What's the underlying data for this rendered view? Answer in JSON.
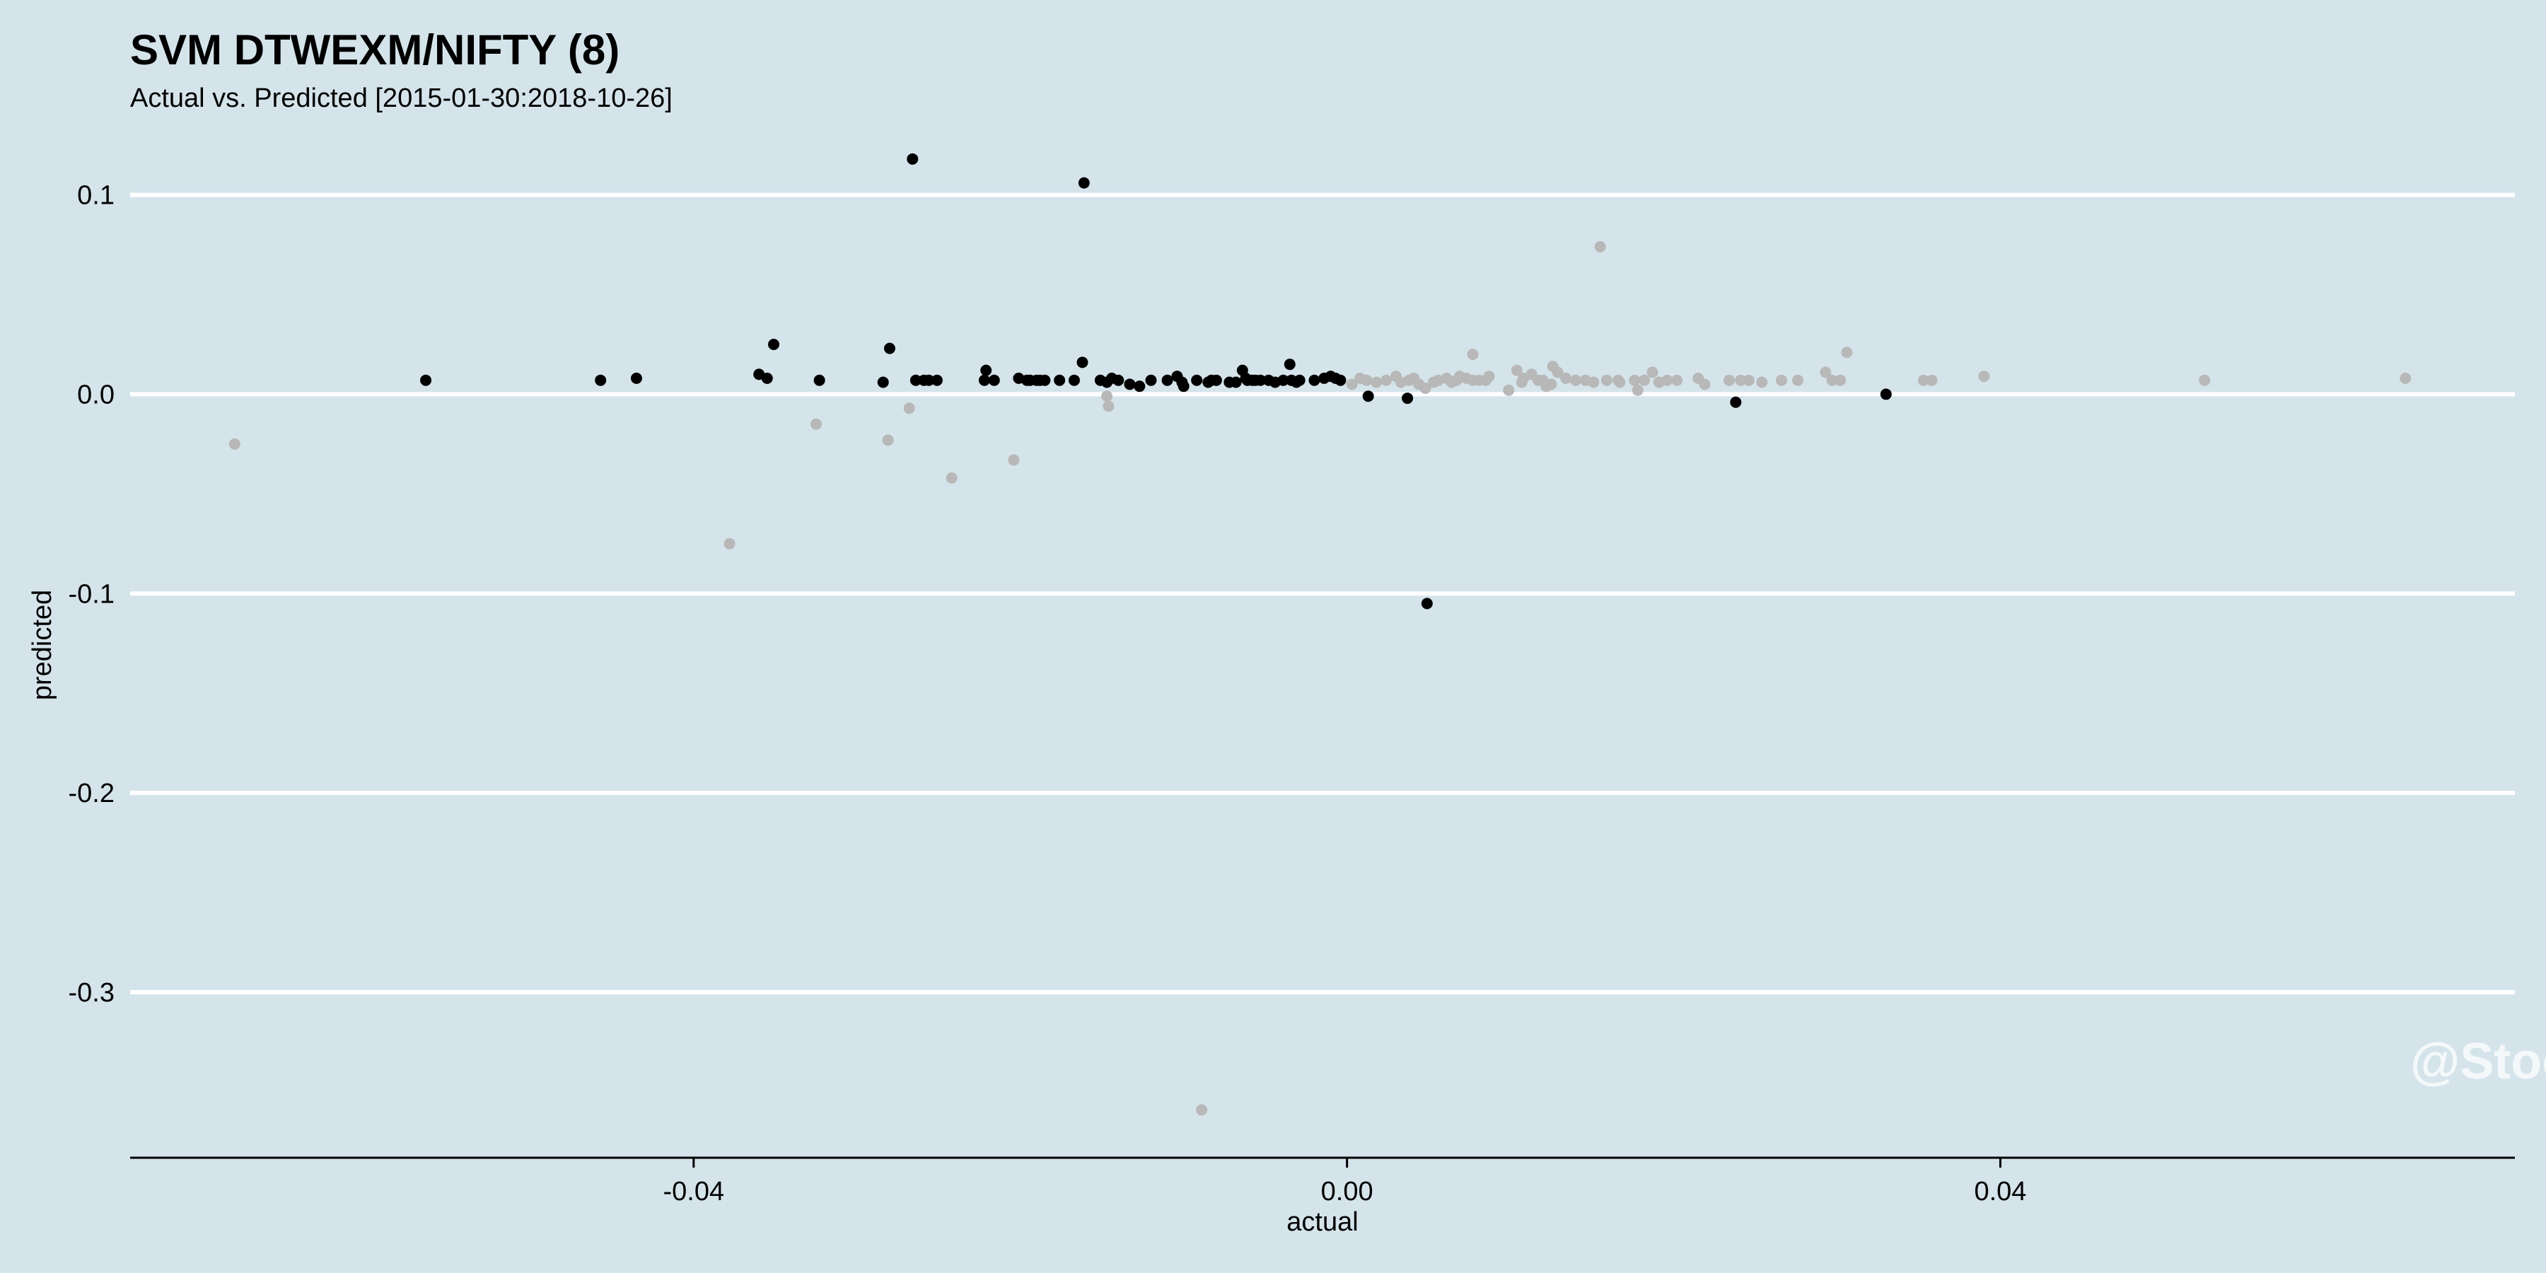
{
  "chart_data": {
    "type": "scatter",
    "title": "SVM DTWEXM/NIFTY (8)",
    "subtitle": "Actual vs. Predicted [2015-01-30:2018-10-26]",
    "xlabel": "actual",
    "ylabel": "predicted",
    "xlim": [
      -0.0745,
      0.0715
    ],
    "ylim": [
      -0.383,
      0.141
    ],
    "xticks": [
      -0.04,
      0.0,
      0.04
    ],
    "xtick_labels": [
      "-0.04",
      "0.00",
      "0.04"
    ],
    "yticks": [
      0.1,
      0.0,
      -0.1,
      -0.2,
      -0.3
    ],
    "ytick_labels": [
      "0.1",
      "0.0",
      "-0.1",
      "-0.2",
      "-0.3"
    ],
    "grid": "horizontal major",
    "watermark": "@StockViz",
    "colors": {
      "background": "#d5e4eb",
      "gridline": "#ffffff",
      "series_dark": "#000000",
      "series_light": "#b8b8b8"
    },
    "series": [
      {
        "color": "#000000",
        "x": [
          -0.0564,
          -0.0457,
          -0.0435,
          -0.036,
          -0.0355,
          -0.0351,
          -0.0323,
          -0.0284,
          -0.028,
          -0.0266,
          -0.0264,
          -0.0259,
          -0.0256,
          -0.0251,
          -0.0222,
          -0.0221,
          -0.0216,
          -0.0201,
          -0.0196,
          -0.0194,
          -0.019,
          -0.0188,
          -0.0185,
          -0.0176,
          -0.0167,
          -0.0162,
          -0.0161,
          -0.0151,
          -0.0147,
          -0.0144,
          -0.014,
          -0.0133,
          -0.0127,
          -0.012,
          -0.011,
          -0.0104,
          -0.0101,
          -0.01,
          -0.0092,
          -0.0085,
          -0.0083,
          -0.008,
          -0.0072,
          -0.0068,
          -0.0064,
          -0.0062,
          -0.0061,
          -0.0058,
          -0.0056,
          -0.0053,
          -0.0048,
          -0.0044,
          -0.0039,
          -0.0035,
          -0.0034,
          -0.0031,
          -0.0029,
          -0.002,
          -0.0014,
          -0.001,
          -0.0007,
          -0.0004,
          0.0013,
          0.0037,
          0.0049,
          0.0238,
          0.033
        ],
        "y": [
          0.007,
          0.007,
          0.008,
          0.01,
          0.008,
          0.025,
          0.007,
          0.006,
          0.023,
          0.118,
          0.007,
          0.007,
          0.007,
          0.007,
          0.007,
          0.012,
          0.007,
          0.008,
          0.007,
          0.007,
          0.007,
          0.007,
          0.007,
          0.007,
          0.007,
          0.016,
          0.106,
          0.007,
          0.006,
          0.008,
          0.007,
          0.005,
          0.004,
          0.007,
          0.007,
          0.009,
          0.006,
          0.004,
          0.007,
          0.006,
          0.007,
          0.007,
          0.006,
          0.006,
          0.012,
          0.008,
          0.007,
          0.007,
          0.007,
          0.007,
          0.007,
          0.006,
          0.007,
          0.015,
          0.007,
          0.006,
          0.007,
          0.007,
          0.008,
          0.009,
          0.008,
          0.007,
          -0.001,
          -0.002,
          -0.105,
          -0.004,
          0.0
        ]
      },
      {
        "color": "#b8b8b8",
        "x": [
          -0.0681,
          -0.0378,
          -0.0325,
          -0.0281,
          -0.0268,
          -0.0242,
          -0.0204,
          -0.0147,
          -0.0146,
          -0.0089,
          0.0003,
          0.0008,
          0.0012,
          0.0018,
          0.0024,
          0.003,
          0.0033,
          0.0038,
          0.0041,
          0.0044,
          0.0048,
          0.0053,
          0.0056,
          0.0061,
          0.0064,
          0.0067,
          0.0069,
          0.0073,
          0.0077,
          0.0081,
          0.0085,
          0.0099,
          0.0104,
          0.0108,
          0.0113,
          0.0117,
          0.012,
          0.0122,
          0.0126,
          0.0129,
          0.0134,
          0.014,
          0.0146,
          0.0151,
          0.0155,
          0.0159,
          0.0167,
          0.0176,
          0.0178,
          0.0182,
          0.0187,
          0.0191,
          0.0196,
          0.0202,
          0.0215,
          0.0219,
          0.0234,
          0.0241,
          0.0246,
          0.0254,
          0.0266,
          0.0276,
          0.0293,
          0.0297,
          0.0302,
          0.0306,
          0.0353,
          0.0358,
          0.039,
          0.0525,
          0.0648,
          0.0077,
          0.0125,
          0.0166,
          0.0087,
          0.0107
        ],
        "y": [
          -0.025,
          -0.075,
          -0.015,
          -0.023,
          -0.007,
          -0.042,
          -0.033,
          -0.001,
          -0.006,
          -0.359,
          0.005,
          0.008,
          0.007,
          0.006,
          0.007,
          0.009,
          0.006,
          0.007,
          0.008,
          0.005,
          0.003,
          0.006,
          0.007,
          0.008,
          0.006,
          0.007,
          0.009,
          0.008,
          0.007,
          0.007,
          0.007,
          0.002,
          0.012,
          0.008,
          0.01,
          0.007,
          0.007,
          0.004,
          0.014,
          0.011,
          0.008,
          0.007,
          0.007,
          0.006,
          0.074,
          0.007,
          0.006,
          0.007,
          0.002,
          0.007,
          0.011,
          0.006,
          0.007,
          0.007,
          0.008,
          0.005,
          0.007,
          0.007,
          0.007,
          0.006,
          0.007,
          0.007,
          0.011,
          0.007,
          0.007,
          0.021,
          0.007,
          0.007,
          0.009,
          0.007,
          0.008,
          0.02,
          0.005,
          0.007,
          0.009,
          0.006
        ]
      }
    ]
  }
}
